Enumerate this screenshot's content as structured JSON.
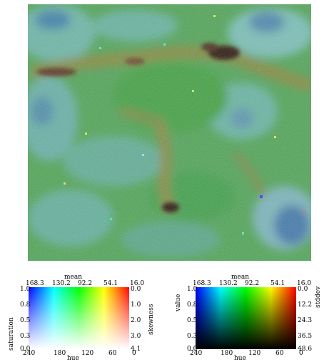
{
  "map": {
    "base_color": "#4f9f56"
  },
  "legends": [
    {
      "id": "left",
      "top_title": "mean",
      "top_ticks": [
        "168.3",
        "130.2",
        "92.2",
        "54.1",
        "16.0"
      ],
      "bottom_title": "hue",
      "bottom_ticks": [
        "240",
        "180",
        "120",
        "60",
        "0"
      ],
      "left_title": "saturation",
      "left_ticks": [
        "1.0",
        "0.8",
        "0.5",
        "0.3",
        "0.0"
      ],
      "right_title": "skewness",
      "right_ticks": [
        "0.0",
        "1.0",
        "2.0",
        "3.0",
        "4.1"
      ]
    },
    {
      "id": "right",
      "top_title": "mean",
      "top_ticks": [
        "168.3",
        "130.2",
        "92.2",
        "54.1",
        "16.0"
      ],
      "bottom_title": "hue",
      "bottom_ticks": [
        "240",
        "180",
        "120",
        "60",
        "0"
      ],
      "left_title": "value",
      "left_ticks": [
        "1.0",
        "0.8",
        "0.5",
        "0.3",
        "0.0"
      ],
      "right_title": "stddev",
      "right_ticks": [
        "0.0",
        "12.2",
        "24.3",
        "36.5",
        "48.6"
      ]
    }
  ]
}
